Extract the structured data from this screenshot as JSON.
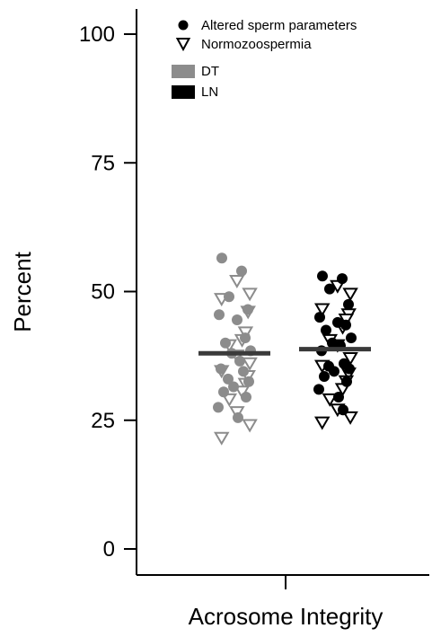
{
  "chart_data": {
    "type": "scatter",
    "title": "",
    "xlabel": "Acrosome Integrity",
    "ylabel": "Percent",
    "ylim": [
      0,
      100
    ],
    "yticks": [
      0,
      25,
      50,
      75,
      100
    ],
    "grid": false,
    "legend_position": "top-right",
    "legend": {
      "markers": [
        {
          "label": "Altered sperm parameters",
          "shape": "filled-circle"
        },
        {
          "label": "Normozoospermia",
          "shape": "open-triangle-down"
        }
      ],
      "groups": [
        {
          "label": "DT",
          "color": "#8c8c8c"
        },
        {
          "label": "LN",
          "color": "#000000"
        }
      ]
    },
    "series": [
      {
        "name": "DT",
        "color": "#8c8c8c",
        "mean": 38.0,
        "altered": [
          56.5,
          54.0,
          49.0,
          46.5,
          45.5,
          44.5,
          41.0,
          40.0,
          38.5,
          38.0,
          36.5,
          35.0,
          34.5,
          33.0,
          32.5,
          31.5,
          30.5,
          29.5,
          27.5,
          25.5
        ],
        "normo": [
          52.0,
          49.5,
          48.5,
          46.0,
          42.0,
          40.5,
          39.5,
          37.5,
          36.0,
          34.5,
          33.5,
          32.0,
          30.5,
          29.0,
          26.5,
          24.0,
          21.5
        ]
      },
      {
        "name": "LN",
        "color": "#000000",
        "mean": 38.8,
        "altered": [
          53.0,
          52.5,
          50.5,
          47.5,
          45.0,
          44.0,
          43.5,
          42.5,
          41.0,
          40.0,
          39.5,
          38.5,
          36.0,
          35.5,
          35.0,
          34.5,
          33.5,
          32.5,
          31.0,
          29.5,
          27.0
        ],
        "normo": [
          51.0,
          49.5,
          46.5,
          45.5,
          44.5,
          43.0,
          40.5,
          39.5,
          37.0,
          35.5,
          34.0,
          32.5,
          31.0,
          29.0,
          27.0,
          25.5,
          24.5
        ]
      }
    ]
  }
}
